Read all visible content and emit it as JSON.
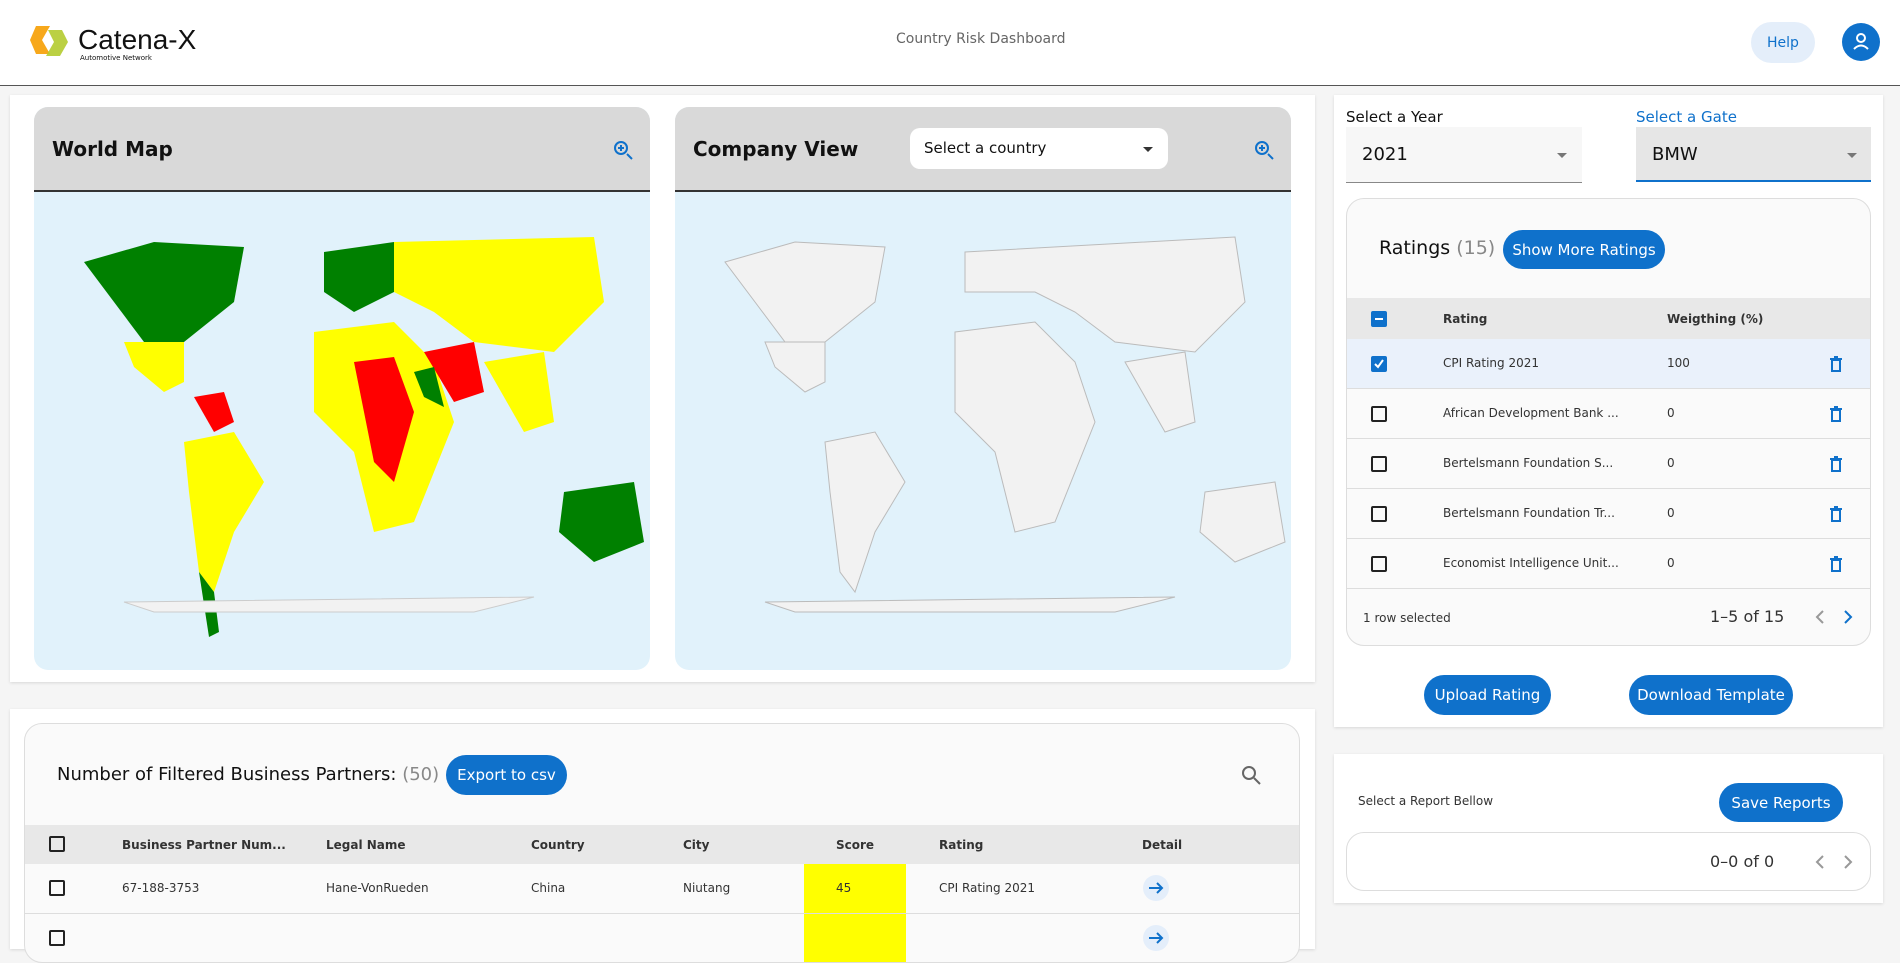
{
  "header": {
    "logo": "Catena-X",
    "logo_tagline": "Automotive Network",
    "title": "Country Risk Dashboard",
    "help": "Help"
  },
  "world_map": {
    "title": "World Map"
  },
  "company_view": {
    "title": "Company View",
    "select_placeholder": "Select a country"
  },
  "filters": {
    "year_label": "Select a Year",
    "year": "2021",
    "gate_label": "Select a Gate",
    "gate": "BMW"
  },
  "ratings": {
    "title": "Ratings",
    "count": "(15)",
    "show_more": "Show More Ratings",
    "columns": [
      "Rating",
      "Weigthing (%)"
    ],
    "header_checkbox": "partial",
    "rows": [
      {
        "name": "CPI Rating 2021",
        "weight": 100,
        "checked": true
      },
      {
        "name": "African Development Bank ...",
        "weight": 0,
        "checked": false
      },
      {
        "name": "Bertelsmann Foundation S...",
        "weight": 0,
        "checked": false
      },
      {
        "name": "Bertelsmann Foundation Tr...",
        "weight": 0,
        "checked": false
      },
      {
        "name": "Economist Intelligence Unit...",
        "weight": 0,
        "checked": false
      }
    ],
    "selected": "1 row selected",
    "pagination": "1–5 of 15",
    "upload": "Upload Rating",
    "download": "Download Template"
  },
  "reports": {
    "label": "Select a Report Bellow",
    "save": "Save Reports",
    "pagination": "0–0 of 0"
  },
  "partners": {
    "title": "Number of Filtered Business Partners:",
    "count": "(50)",
    "export": "Export to csv",
    "columns": [
      "Business Partner Num...",
      "Legal Name",
      "Country",
      "City",
      "Score",
      "Rating",
      "Detail"
    ],
    "rows": [
      {
        "bpn": "67-188-3753",
        "legal_name": "Hane-VonRueden",
        "country": "China",
        "city": "Niutang",
        "score": 45,
        "rating": "CPI Rating 2021"
      }
    ]
  }
}
